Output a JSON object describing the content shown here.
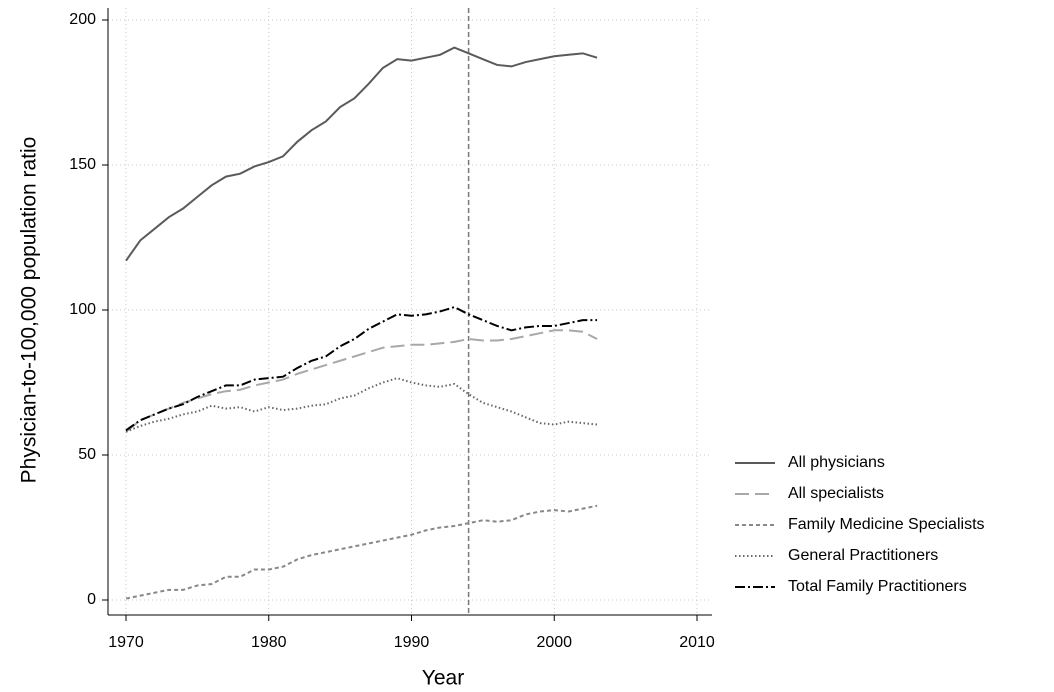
{
  "chart_data": {
    "type": "line",
    "x_label": "Year",
    "y_label": "Physician-to-100,000 population ratio",
    "x": [
      1970,
      1971,
      1972,
      1973,
      1974,
      1975,
      1976,
      1977,
      1978,
      1979,
      1980,
      1981,
      1982,
      1983,
      1984,
      1985,
      1986,
      1987,
      1988,
      1989,
      1990,
      1991,
      1992,
      1993,
      1994,
      1995,
      1996,
      1997,
      1998,
      1999,
      2000,
      2001,
      2002,
      2003
    ],
    "series": [
      {
        "name": "All physicians",
        "color": "#5a5a5a",
        "dash": "none",
        "values": [
          117,
          124,
          128,
          132,
          135,
          139,
          143,
          146,
          147,
          149.5,
          151,
          153,
          158,
          162,
          165,
          170,
          173,
          178,
          183.5,
          186.5,
          186,
          187,
          188,
          190.5,
          188.5,
          186.5,
          184.5,
          184,
          185.5,
          186.5,
          187.5,
          188,
          188.5,
          187
        ]
      },
      {
        "name": "All specialists",
        "color": "#a8a8a8",
        "dash": "14 6",
        "values": [
          58,
          62,
          64,
          66,
          68,
          69.5,
          71,
          72,
          72.5,
          74,
          75,
          76,
          78,
          79.5,
          81,
          82.5,
          84,
          85.5,
          87,
          87.5,
          88,
          88,
          88.5,
          89,
          90,
          89.5,
          89.5,
          90,
          91,
          92,
          93,
          93,
          92.5,
          90
        ]
      },
      {
        "name": "Family Medicine Specialists",
        "color": "#888888",
        "dash": "4 3",
        "values": [
          0.5,
          1.5,
          2.5,
          3.5,
          3.5,
          5,
          5.5,
          8,
          8,
          10.5,
          10.5,
          11.5,
          14,
          15.5,
          16.5,
          17.5,
          18.5,
          19.5,
          20.5,
          21.5,
          22.5,
          24,
          25,
          25.5,
          26.5,
          27.5,
          27,
          27.5,
          29.5,
          30.5,
          31,
          30.5,
          31.5,
          32.5
        ]
      },
      {
        "name": "General Practitioners",
        "color": "#666666",
        "dash": "1.5 2.5",
        "values": [
          58,
          60,
          61.5,
          62.5,
          64,
          65,
          67,
          66,
          66.5,
          65,
          66.5,
          65.5,
          66,
          67,
          67.5,
          69.5,
          70.5,
          73,
          75,
          76.5,
          75,
          74,
          73.5,
          74.5,
          71,
          68,
          66.5,
          65,
          63,
          61,
          60.5,
          61.5,
          61,
          60.5
        ]
      },
      {
        "name": "Total Family Practitioners",
        "color": "#000000",
        "dash": "10 3 2 3",
        "values": [
          58.5,
          62,
          64,
          66,
          67.5,
          70,
          72,
          74,
          74,
          76,
          76.5,
          77,
          80,
          82.5,
          84,
          87.5,
          90,
          93.5,
          96,
          98.5,
          98,
          98.5,
          99.5,
          101,
          98.5,
          96.5,
          94.5,
          93,
          94,
          94.5,
          94.5,
          95.5,
          96.5,
          96.5
        ]
      }
    ],
    "xlim": [
      1970,
      2010
    ],
    "xticks": [
      1970,
      1980,
      1990,
      2000,
      2010
    ],
    "ylim": [
      0,
      200
    ],
    "yticks": [
      0,
      50,
      100,
      150,
      200
    ],
    "vline": 1994,
    "grid": true,
    "legend": "right"
  }
}
